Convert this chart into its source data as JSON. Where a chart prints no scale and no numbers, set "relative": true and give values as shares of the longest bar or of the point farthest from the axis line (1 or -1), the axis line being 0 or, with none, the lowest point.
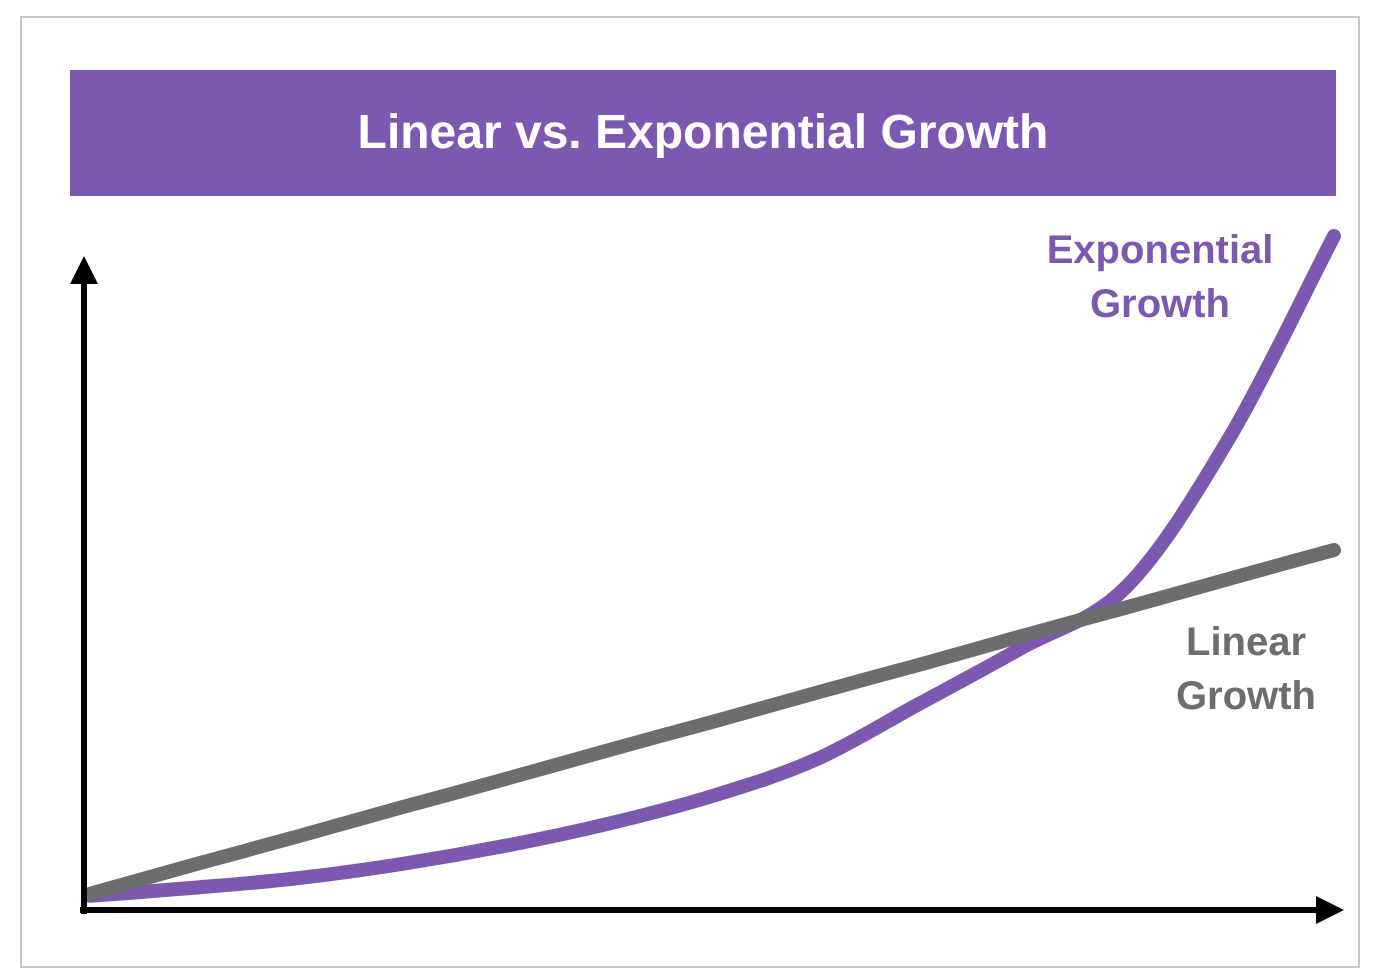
{
  "chart_data": {
    "type": "line",
    "title": "Linear vs. Exponential Growth",
    "relative": true,
    "grid": false,
    "legend": false,
    "marker": "none",
    "line_style": "solid",
    "categories": [
      null,
      null,
      null,
      null,
      null,
      null,
      null,
      null,
      null,
      null,
      null,
      null,
      null
    ],
    "series": [
      {
        "name": "Linear Growth",
        "color": "#6d6d6f",
        "values": [
          0.024,
          0.067,
          0.109,
          0.152,
          0.194,
          0.237,
          0.279,
          0.322,
          0.364,
          0.407,
          0.449,
          0.492,
          0.534
        ]
      },
      {
        "name": "Exponential Growth",
        "color": "#7b59b0",
        "values": [
          0.021,
          0.033,
          0.047,
          0.068,
          0.095,
          0.128,
          0.169,
          0.223,
          0.306,
          0.39,
          0.48,
          0.703,
          1
        ]
      }
    ]
  }
}
